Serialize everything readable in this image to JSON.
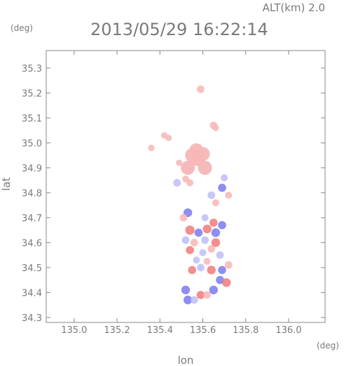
{
  "header": {
    "altitude_label": "ALT(km) 2.0",
    "timestamp": "2013/05/29 16:22:14",
    "y_unit": "(deg)",
    "x_unit": "(deg)"
  },
  "colors": {
    "background": "#ffffff",
    "axis": "#888888",
    "text": "#7a7a7a",
    "positive": "#f07a7a",
    "positive_light": "#f7b6b6",
    "negative": "#7a7af0",
    "negative_light": "#bdbdf7"
  },
  "chart_data": {
    "type": "heatmap",
    "title": "2013/05/29 16:22:14",
    "subtitle": "ALT(km) 2.0",
    "xlabel": "lon",
    "ylabel": "lat",
    "xunit": "(deg)",
    "yunit": "(deg)",
    "xlim": [
      134.87,
      136.17
    ],
    "ylim": [
      34.28,
      35.37
    ],
    "xticks": [
      135.0,
      135.2,
      135.4,
      135.6,
      135.8,
      136.0
    ],
    "xtick_labels": [
      "135.0",
      "135.2",
      "135.4",
      "135.6",
      "135.8",
      "136.0"
    ],
    "yticks": [
      34.3,
      34.4,
      34.5,
      34.6,
      34.7,
      34.8,
      34.9,
      35.0,
      35.1,
      35.2,
      35.3
    ],
    "ytick_labels": [
      "34.3",
      "34.4",
      "34.5",
      "34.6",
      "34.7",
      "34.8",
      "34.9",
      "35.0",
      "35.1",
      "35.2",
      "35.3"
    ],
    "grid": false,
    "echo_cells": [
      {
        "lon": 135.59,
        "lat": 35.215,
        "sign": "positive",
        "intensity": 0.6
      },
      {
        "lon": 135.65,
        "lat": 35.07,
        "sign": "positive",
        "intensity": 0.6
      },
      {
        "lon": 135.66,
        "lat": 35.06,
        "sign": "positive",
        "intensity": 0.4
      },
      {
        "lon": 135.42,
        "lat": 35.03,
        "sign": "positive",
        "intensity": 0.4
      },
      {
        "lon": 135.44,
        "lat": 35.02,
        "sign": "positive",
        "intensity": 0.4
      },
      {
        "lon": 135.36,
        "lat": 34.98,
        "sign": "positive",
        "intensity": 0.4
      },
      {
        "lon": 135.575,
        "lat": 34.935,
        "sign": "positive",
        "intensity": 0.5
      },
      {
        "lon": 135.55,
        "lat": 34.95,
        "sign": "positive",
        "intensity": 0.5
      },
      {
        "lon": 135.6,
        "lat": 34.955,
        "sign": "positive",
        "intensity": 0.5
      },
      {
        "lon": 135.53,
        "lat": 34.9,
        "sign": "positive",
        "intensity": 0.5
      },
      {
        "lon": 135.61,
        "lat": 34.9,
        "sign": "positive",
        "intensity": 0.5
      },
      {
        "lon": 135.49,
        "lat": 34.92,
        "sign": "positive",
        "intensity": 0.4
      },
      {
        "lon": 135.57,
        "lat": 34.97,
        "sign": "positive",
        "intensity": 0.5
      },
      {
        "lon": 135.52,
        "lat": 34.855,
        "sign": "positive",
        "intensity": 0.5
      },
      {
        "lon": 135.48,
        "lat": 34.84,
        "sign": "negative",
        "intensity": 0.6
      },
      {
        "lon": 135.54,
        "lat": 34.84,
        "sign": "positive",
        "intensity": 0.5
      },
      {
        "lon": 135.7,
        "lat": 34.86,
        "sign": "negative",
        "intensity": 0.5
      },
      {
        "lon": 135.69,
        "lat": 34.82,
        "sign": "negative",
        "intensity": 0.7
      },
      {
        "lon": 135.64,
        "lat": 34.79,
        "sign": "negative",
        "intensity": 0.6
      },
      {
        "lon": 135.66,
        "lat": 34.76,
        "sign": "positive",
        "intensity": 0.5
      },
      {
        "lon": 135.72,
        "lat": 34.79,
        "sign": "positive",
        "intensity": 0.5
      },
      {
        "lon": 135.53,
        "lat": 34.72,
        "sign": "negative",
        "intensity": 0.8
      },
      {
        "lon": 135.51,
        "lat": 34.7,
        "sign": "positive",
        "intensity": 0.6
      },
      {
        "lon": 135.61,
        "lat": 34.7,
        "sign": "negative",
        "intensity": 0.5
      },
      {
        "lon": 135.65,
        "lat": 34.68,
        "sign": "positive",
        "intensity": 0.7
      },
      {
        "lon": 135.69,
        "lat": 34.67,
        "sign": "negative",
        "intensity": 0.7
      },
      {
        "lon": 135.54,
        "lat": 34.65,
        "sign": "positive",
        "intensity": 0.9
      },
      {
        "lon": 135.58,
        "lat": 34.64,
        "sign": "negative",
        "intensity": 0.7
      },
      {
        "lon": 135.62,
        "lat": 34.655,
        "sign": "positive",
        "intensity": 0.8
      },
      {
        "lon": 135.66,
        "lat": 34.64,
        "sign": "negative",
        "intensity": 0.8
      },
      {
        "lon": 135.52,
        "lat": 34.61,
        "sign": "negative",
        "intensity": 0.6
      },
      {
        "lon": 135.56,
        "lat": 34.6,
        "sign": "positive",
        "intensity": 0.6
      },
      {
        "lon": 135.61,
        "lat": 34.61,
        "sign": "negative",
        "intensity": 0.6
      },
      {
        "lon": 135.66,
        "lat": 34.6,
        "sign": "positive",
        "intensity": 0.8
      },
      {
        "lon": 135.54,
        "lat": 34.57,
        "sign": "positive",
        "intensity": 0.7
      },
      {
        "lon": 135.6,
        "lat": 34.56,
        "sign": "negative",
        "intensity": 0.5
      },
      {
        "lon": 135.64,
        "lat": 34.575,
        "sign": "positive",
        "intensity": 0.6
      },
      {
        "lon": 135.68,
        "lat": 34.55,
        "sign": "negative",
        "intensity": 0.6
      },
      {
        "lon": 135.57,
        "lat": 34.53,
        "sign": "negative",
        "intensity": 0.5
      },
      {
        "lon": 135.62,
        "lat": 34.525,
        "sign": "positive",
        "intensity": 0.5
      },
      {
        "lon": 135.55,
        "lat": 34.49,
        "sign": "positive",
        "intensity": 0.7
      },
      {
        "lon": 135.59,
        "lat": 34.5,
        "sign": "negative",
        "intensity": 0.6
      },
      {
        "lon": 135.64,
        "lat": 34.49,
        "sign": "positive",
        "intensity": 0.8
      },
      {
        "lon": 135.69,
        "lat": 34.49,
        "sign": "negative",
        "intensity": 0.7
      },
      {
        "lon": 135.72,
        "lat": 34.51,
        "sign": "positive",
        "intensity": 0.6
      },
      {
        "lon": 135.68,
        "lat": 34.45,
        "sign": "negative",
        "intensity": 0.7
      },
      {
        "lon": 135.71,
        "lat": 34.44,
        "sign": "positive",
        "intensity": 0.8
      },
      {
        "lon": 135.52,
        "lat": 34.41,
        "sign": "negative",
        "intensity": 0.8
      },
      {
        "lon": 135.65,
        "lat": 34.41,
        "sign": "negative",
        "intensity": 0.8
      },
      {
        "lon": 135.59,
        "lat": 34.39,
        "sign": "positive",
        "intensity": 0.7
      },
      {
        "lon": 135.62,
        "lat": 34.39,
        "sign": "positive",
        "intensity": 0.6
      },
      {
        "lon": 135.53,
        "lat": 34.37,
        "sign": "negative",
        "intensity": 0.8
      },
      {
        "lon": 135.56,
        "lat": 34.37,
        "sign": "negative",
        "intensity": 0.6
      }
    ]
  }
}
